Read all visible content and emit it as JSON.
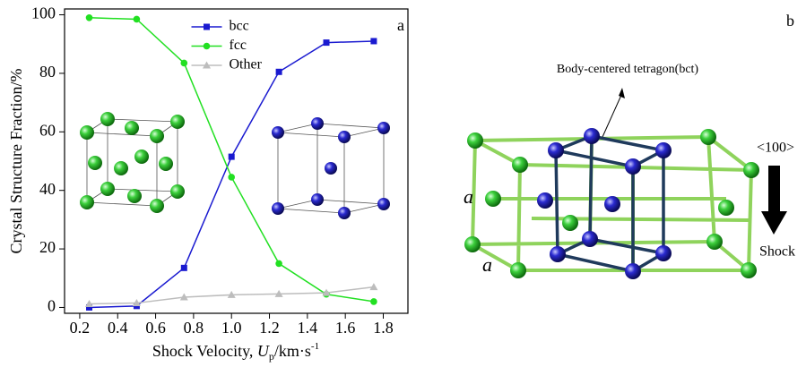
{
  "chart_data": {
    "type": "line",
    "panel_label": "a",
    "ylabel": "Crystal Structure Fraction/%",
    "xlabel": {
      "text": "Shock Velocity, ",
      "var": "U",
      "sub": "p",
      "unit": "/km·s",
      "sup": "-1"
    },
    "x": [
      0.25,
      0.5,
      0.75,
      1.0,
      1.25,
      1.5,
      1.75
    ],
    "series": [
      {
        "name": "bcc",
        "color": "#1a1ad0",
        "marker": "square",
        "values": [
          0,
          0.5,
          13.5,
          51.5,
          80.5,
          90.5,
          91
        ]
      },
      {
        "name": "fcc",
        "color": "#22e022",
        "marker": "circle",
        "values": [
          99,
          98.5,
          83.5,
          44.5,
          15,
          4.5,
          2
        ]
      },
      {
        "name": "Other",
        "color": "#bdbdbd",
        "marker": "triangle",
        "values": [
          1.2,
          1.5,
          3.5,
          4.3,
          4.6,
          5,
          7
        ]
      }
    ],
    "xlim": [
      0.12,
      1.93
    ],
    "ylim": [
      -2,
      102
    ],
    "xticks": [
      0.2,
      0.4,
      0.6,
      0.8,
      {
        "value": 1,
        "label": "1.0"
      },
      1.2,
      1.4,
      1.6,
      1.8
    ],
    "yticks": [
      0,
      20,
      40,
      60,
      80,
      100
    ],
    "legend": "upper center"
  },
  "diagram": {
    "label": "b",
    "annotation": "Body-centered tetragon(bct)",
    "direction": "<100>",
    "arrow_label": "Shock",
    "edge_labels": [
      "a",
      "a"
    ]
  }
}
